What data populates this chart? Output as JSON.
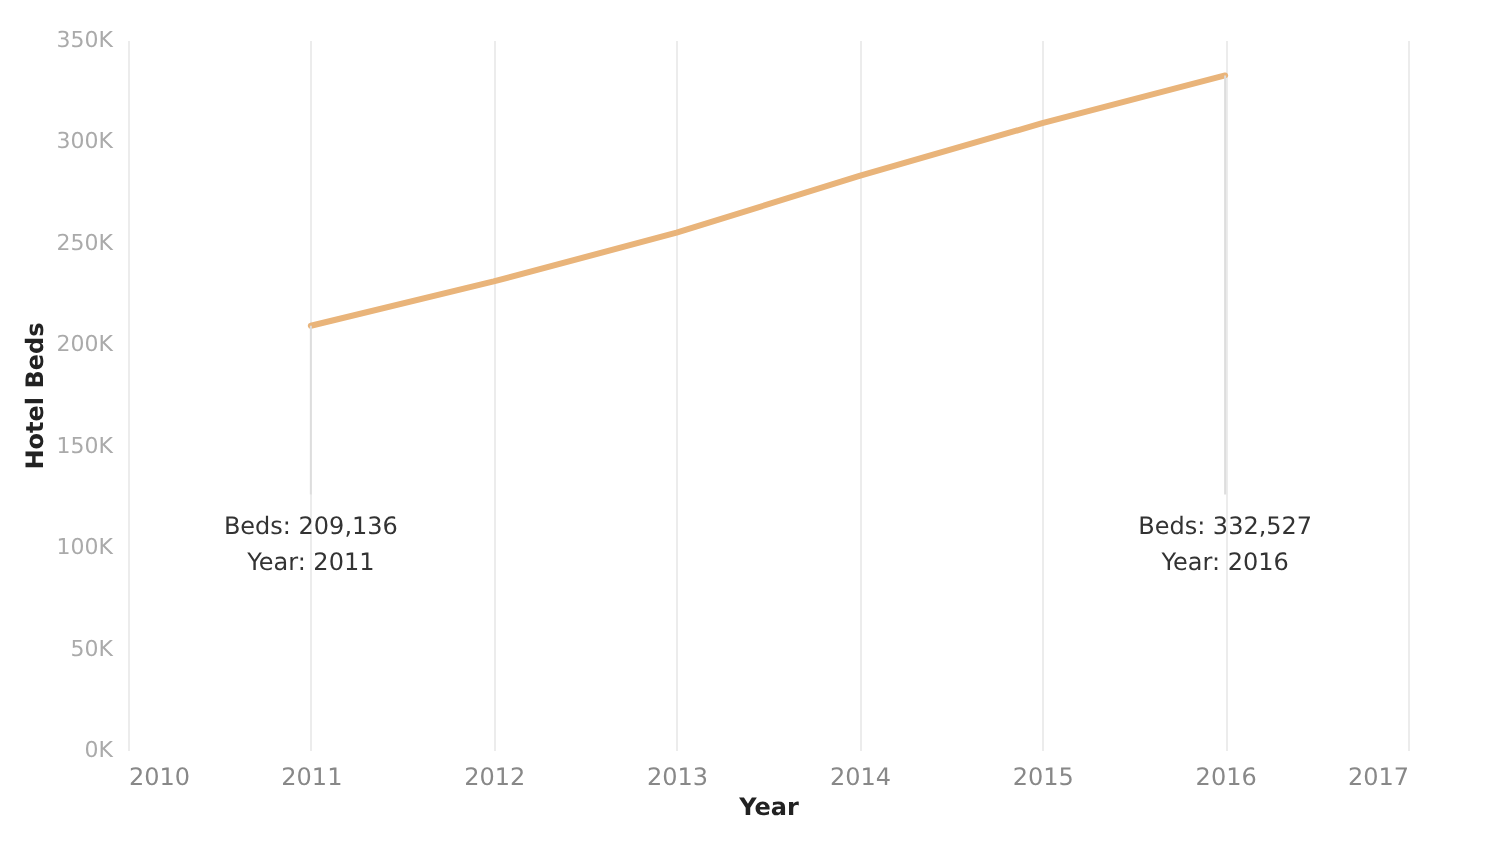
{
  "chart_data": {
    "type": "line",
    "xlabel": "Year",
    "ylabel": "Hotel Beds",
    "x": [
      2011,
      2012,
      2013,
      2014,
      2015,
      2016
    ],
    "series": [
      {
        "color": "#e9b47a",
        "values": [
          209136,
          231000,
          255000,
          283000,
          309000,
          332527
        ]
      }
    ],
    "xlim": [
      2010,
      2017
    ],
    "xticks": [
      2010,
      2011,
      2012,
      2013,
      2014,
      2015,
      2016,
      2017
    ],
    "ylim": [
      0,
      350000
    ],
    "yticks": [
      {
        "value": 0,
        "label": "0K"
      },
      {
        "value": 50000,
        "label": "50K"
      },
      {
        "value": 100000,
        "label": "100K"
      },
      {
        "value": 150000,
        "label": "150K"
      },
      {
        "value": 200000,
        "label": "200K"
      },
      {
        "value": 250000,
        "label": "250K"
      },
      {
        "value": 300000,
        "label": "300K"
      },
      {
        "value": 350000,
        "label": "350K"
      }
    ],
    "grid": "x",
    "marker": "none",
    "line_style": "solid",
    "annotations": [
      {
        "text": "Beds: 209,136\nYear: 2011",
        "x": 2011,
        "y": 209136
      },
      {
        "text": "Beds: 332,527\nYear: 2016",
        "x": 2016,
        "y": 332527
      }
    ]
  }
}
